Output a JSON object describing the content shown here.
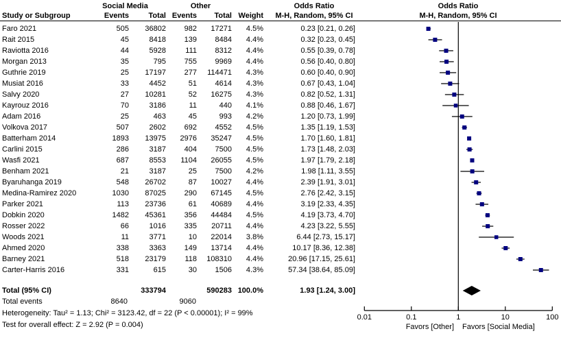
{
  "header": {
    "col_study": "Study or Subgroup",
    "group_social_media": "Social Media",
    "group_other": "Other",
    "col_events": "Events",
    "col_total": "Total",
    "col_weight": "Weight",
    "or_title_left": "Odds Ratio",
    "or_subtitle_left": "M-H, Random, 95% CI",
    "or_title_right": "Odds Ratio",
    "or_subtitle_right": "M-H, Random, 95% CI"
  },
  "chart_data": {
    "type": "forest",
    "x_scale": "log10",
    "x_ticks": [
      0.01,
      0.1,
      1,
      10,
      100
    ],
    "x_tick_labels": [
      "0.01",
      "0.1",
      "1",
      "10",
      "100"
    ],
    "favors_left": "Favors [Other]",
    "favors_right": "Favors [Social Media]",
    "marker_color": "#000080",
    "line_color": "#000000",
    "diamond_color": "#000000",
    "studies": [
      {
        "name": "Faro 2021",
        "sm_events": "505",
        "sm_total": "36802",
        "o_events": "982",
        "o_total": "17271",
        "weight": "4.5%",
        "weight_pct": 4.5,
        "or": 0.23,
        "ci_low": 0.21,
        "ci_high": 0.26,
        "or_text": "0.23 [0.21, 0.26]"
      },
      {
        "name": "Rait 2015",
        "sm_events": "45",
        "sm_total": "8418",
        "o_events": "139",
        "o_total": "8484",
        "weight": "4.4%",
        "weight_pct": 4.4,
        "or": 0.32,
        "ci_low": 0.23,
        "ci_high": 0.45,
        "or_text": "0.32 [0.23, 0.45]"
      },
      {
        "name": "Raviotta 2016",
        "sm_events": "44",
        "sm_total": "5928",
        "o_events": "111",
        "o_total": "8312",
        "weight": "4.4%",
        "weight_pct": 4.4,
        "or": 0.55,
        "ci_low": 0.39,
        "ci_high": 0.78,
        "or_text": "0.55 [0.39, 0.78]"
      },
      {
        "name": "Morgan 2013",
        "sm_events": "35",
        "sm_total": "795",
        "o_events": "755",
        "o_total": "9969",
        "weight": "4.4%",
        "weight_pct": 4.4,
        "or": 0.56,
        "ci_low": 0.4,
        "ci_high": 0.8,
        "or_text": "0.56 [0.40, 0.80]"
      },
      {
        "name": "Guthrie 2019",
        "sm_events": "25",
        "sm_total": "17197",
        "o_events": "277",
        "o_total": "114471",
        "weight": "4.3%",
        "weight_pct": 4.3,
        "or": 0.6,
        "ci_low": 0.4,
        "ci_high": 0.9,
        "or_text": "0.60 [0.40, 0.90]"
      },
      {
        "name": "Musiat 2016",
        "sm_events": "33",
        "sm_total": "4452",
        "o_events": "51",
        "o_total": "4614",
        "weight": "4.3%",
        "weight_pct": 4.3,
        "or": 0.67,
        "ci_low": 0.43,
        "ci_high": 1.04,
        "or_text": "0.67 [0.43, 1.04]"
      },
      {
        "name": "Salvy 2020",
        "sm_events": "27",
        "sm_total": "10281",
        "o_events": "52",
        "o_total": "16275",
        "weight": "4.3%",
        "weight_pct": 4.3,
        "or": 0.82,
        "ci_low": 0.52,
        "ci_high": 1.31,
        "or_text": "0.82 [0.52, 1.31]"
      },
      {
        "name": "Kayrouz 2016",
        "sm_events": "70",
        "sm_total": "3186",
        "o_events": "11",
        "o_total": "440",
        "weight": "4.1%",
        "weight_pct": 4.1,
        "or": 0.88,
        "ci_low": 0.46,
        "ci_high": 1.67,
        "or_text": "0.88 [0.46, 1.67]"
      },
      {
        "name": "Adam 2016",
        "sm_events": "25",
        "sm_total": "463",
        "o_events": "45",
        "o_total": "993",
        "weight": "4.2%",
        "weight_pct": 4.2,
        "or": 1.2,
        "ci_low": 0.73,
        "ci_high": 1.99,
        "or_text": "1.20 [0.73, 1.99]"
      },
      {
        "name": "Volkova 2017",
        "sm_events": "507",
        "sm_total": "2602",
        "o_events": "692",
        "o_total": "4552",
        "weight": "4.5%",
        "weight_pct": 4.5,
        "or": 1.35,
        "ci_low": 1.19,
        "ci_high": 1.53,
        "or_text": "1.35 [1.19, 1.53]"
      },
      {
        "name": "Batterham 2014",
        "sm_events": "1893",
        "sm_total": "13975",
        "o_events": "2976",
        "o_total": "35247",
        "weight": "4.5%",
        "weight_pct": 4.5,
        "or": 1.7,
        "ci_low": 1.6,
        "ci_high": 1.81,
        "or_text": "1.70 [1.60, 1.81]"
      },
      {
        "name": "Carlini 2015",
        "sm_events": "286",
        "sm_total": "3187",
        "o_events": "404",
        "o_total": "7500",
        "weight": "4.5%",
        "weight_pct": 4.5,
        "or": 1.73,
        "ci_low": 1.48,
        "ci_high": 2.03,
        "or_text": "1.73 [1.48, 2.03]"
      },
      {
        "name": "Wasfi 2021",
        "sm_events": "687",
        "sm_total": "8553",
        "o_events": "1104",
        "o_total": "26055",
        "weight": "4.5%",
        "weight_pct": 4.5,
        "or": 1.97,
        "ci_low": 1.79,
        "ci_high": 2.18,
        "or_text": "1.97 [1.79, 2.18]"
      },
      {
        "name": "Benham 2021",
        "sm_events": "21",
        "sm_total": "3187",
        "o_events": "25",
        "o_total": "7500",
        "weight": "4.2%",
        "weight_pct": 4.2,
        "or": 1.98,
        "ci_low": 1.11,
        "ci_high": 3.55,
        "or_text": "1.98 [1.11, 3.55]"
      },
      {
        "name": "Byaruhanga 2019",
        "sm_events": "548",
        "sm_total": "26702",
        "o_events": "87",
        "o_total": "10027",
        "weight": "4.4%",
        "weight_pct": 4.4,
        "or": 2.39,
        "ci_low": 1.91,
        "ci_high": 3.01,
        "or_text": "2.39 [1.91, 3.01]"
      },
      {
        "name": "Medina-Ramirez 2020",
        "sm_events": "1030",
        "sm_total": "87025",
        "o_events": "290",
        "o_total": "67145",
        "weight": "4.5%",
        "weight_pct": 4.5,
        "or": 2.76,
        "ci_low": 2.42,
        "ci_high": 3.15,
        "or_text": "2.76 [2.42, 3.15]"
      },
      {
        "name": "Parker 2021",
        "sm_events": "113",
        "sm_total": "23736",
        "o_events": "61",
        "o_total": "40689",
        "weight": "4.4%",
        "weight_pct": 4.4,
        "or": 3.19,
        "ci_low": 2.33,
        "ci_high": 4.35,
        "or_text": "3.19 [2.33, 4.35]"
      },
      {
        "name": "Dobkin 2020",
        "sm_events": "1482",
        "sm_total": "45361",
        "o_events": "356",
        "o_total": "44484",
        "weight": "4.5%",
        "weight_pct": 4.5,
        "or": 4.19,
        "ci_low": 3.73,
        "ci_high": 4.7,
        "or_text": "4.19 [3.73, 4.70]"
      },
      {
        "name": "Rosser 2022",
        "sm_events": "66",
        "sm_total": "1016",
        "o_events": "335",
        "o_total": "20711",
        "weight": "4.4%",
        "weight_pct": 4.4,
        "or": 4.23,
        "ci_low": 3.22,
        "ci_high": 5.55,
        "or_text": "4.23 [3.22, 5.55]"
      },
      {
        "name": "Woods 2021",
        "sm_events": "11",
        "sm_total": "3771",
        "o_events": "10",
        "o_total": "22014",
        "weight": "3.8%",
        "weight_pct": 3.8,
        "or": 6.44,
        "ci_low": 2.73,
        "ci_high": 15.17,
        "or_text": "6.44 [2.73, 15.17]"
      },
      {
        "name": "Ahmed 2020",
        "sm_events": "338",
        "sm_total": "3363",
        "o_events": "149",
        "o_total": "13714",
        "weight": "4.4%",
        "weight_pct": 4.4,
        "or": 10.17,
        "ci_low": 8.36,
        "ci_high": 12.38,
        "or_text": "10.17 [8.36, 12.38]"
      },
      {
        "name": "Barney 2021",
        "sm_events": "518",
        "sm_total": "23179",
        "o_events": "118",
        "o_total": "108310",
        "weight": "4.4%",
        "weight_pct": 4.4,
        "or": 20.96,
        "ci_low": 17.15,
        "ci_high": 25.61,
        "or_text": "20.96 [17.15, 25.61]"
      },
      {
        "name": "Carter-Harris 2016",
        "sm_events": "331",
        "sm_total": "615",
        "o_events": "30",
        "o_total": "1506",
        "weight": "4.3%",
        "weight_pct": 4.3,
        "or": 57.34,
        "ci_low": 38.64,
        "ci_high": 85.09,
        "or_text": "57.34 [38.64, 85.09]"
      }
    ],
    "total": {
      "label": "Total (95% CI)",
      "sm_total": "333794",
      "o_total": "590283",
      "weight": "100.0%",
      "or": 1.93,
      "ci_low": 1.24,
      "ci_high": 3.0,
      "or_text": "1.93 [1.24, 3.00]"
    }
  },
  "footer": {
    "total_events_label": "Total events",
    "total_events_sm": "8640",
    "total_events_other": "9060",
    "heterogeneity": "Heterogeneity: Tau² = 1.13; Chi² = 3123.42, df = 22 (P < 0.00001); I² = 99%",
    "overall_effect": "Test for overall effect: Z = 2.92 (P = 0.004)"
  }
}
